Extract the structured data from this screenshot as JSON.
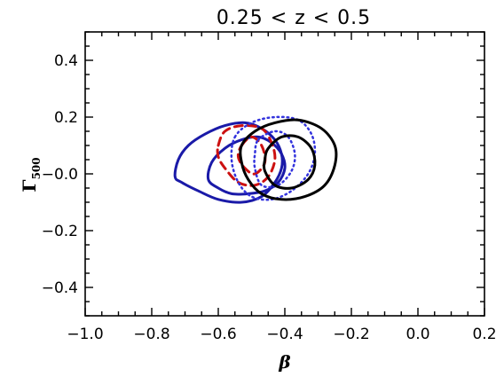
{
  "chart_data": {
    "type": "contour",
    "title": "0.25 < z < 0.5",
    "xlabel": "β",
    "ylabel": "Γ",
    "ylabel_sub": "500",
    "xlim": [
      -1.0,
      0.2
    ],
    "ylim": [
      -0.5,
      0.5
    ],
    "x_ticks": [
      -1.0,
      -0.8,
      -0.6,
      -0.4,
      -0.2,
      0.0,
      0.2
    ],
    "x_tick_labels": [
      "−1.0",
      "−0.8",
      "−0.6",
      "−0.4",
      "−0.2",
      "0.0",
      "0.2"
    ],
    "y_ticks": [
      -0.4,
      -0.2,
      0.0,
      0.2,
      0.4
    ],
    "y_tick_labels": [
      "−0.4",
      "−0.2",
      "−0.0",
      "0.2",
      "0.4"
    ],
    "grid": false,
    "series": [
      {
        "color": "#1a1aa8",
        "style": "solid",
        "contours": [
          [
            [
              -0.73,
              -0.01
            ],
            [
              -0.72,
              0.05
            ],
            [
              -0.69,
              0.1
            ],
            [
              -0.64,
              0.14
            ],
            [
              -0.58,
              0.17
            ],
            [
              -0.52,
              0.18
            ],
            [
              -0.47,
              0.16
            ],
            [
              -0.43,
              0.12
            ],
            [
              -0.41,
              0.07
            ],
            [
              -0.41,
              0.02
            ],
            [
              -0.43,
              -0.03
            ],
            [
              -0.47,
              -0.08
            ],
            [
              -0.53,
              -0.1
            ],
            [
              -0.6,
              -0.09
            ],
            [
              -0.66,
              -0.06
            ],
            [
              -0.71,
              -0.03
            ]
          ],
          [
            [
              -0.63,
              -0.02
            ],
            [
              -0.62,
              0.04
            ],
            [
              -0.58,
              0.09
            ],
            [
              -0.53,
              0.12
            ],
            [
              -0.48,
              0.13
            ],
            [
              -0.44,
              0.11
            ],
            [
              -0.41,
              0.07
            ],
            [
              -0.4,
              0.02
            ],
            [
              -0.42,
              -0.03
            ],
            [
              -0.46,
              -0.06
            ],
            [
              -0.51,
              -0.07
            ],
            [
              -0.56,
              -0.07
            ],
            [
              -0.6,
              -0.05
            ]
          ]
        ]
      },
      {
        "color": "#cc1111",
        "style": "dashed",
        "contours": [
          [
            [
              -0.6,
              0.1
            ],
            [
              -0.58,
              0.15
            ],
            [
              -0.53,
              0.17
            ],
            [
              -0.47,
              0.16
            ],
            [
              -0.44,
              0.11
            ],
            [
              -0.43,
              0.05
            ],
            [
              -0.45,
              -0.01
            ],
            [
              -0.49,
              -0.04
            ],
            [
              -0.54,
              -0.03
            ],
            [
              -0.58,
              0.02
            ],
            [
              -0.6,
              0.06
            ]
          ],
          [
            [
              -0.53,
              0.1
            ],
            [
              -0.5,
              0.13
            ],
            [
              -0.47,
              0.1
            ],
            [
              -0.46,
              0.04
            ],
            [
              -0.49,
              0.0
            ],
            [
              -0.52,
              0.02
            ],
            [
              -0.54,
              0.06
            ]
          ]
        ]
      },
      {
        "color": "#3333dd",
        "style": "dotted",
        "contours": [
          [
            [
              -0.55,
              0.13
            ],
            [
              -0.5,
              0.18
            ],
            [
              -0.43,
              0.2
            ],
            [
              -0.36,
              0.19
            ],
            [
              -0.32,
              0.14
            ],
            [
              -0.31,
              0.07
            ],
            [
              -0.33,
              0.0
            ],
            [
              -0.38,
              -0.06
            ],
            [
              -0.44,
              -0.09
            ],
            [
              -0.5,
              -0.08
            ],
            [
              -0.54,
              -0.03
            ],
            [
              -0.56,
              0.05
            ]
          ],
          [
            [
              -0.48,
              0.12
            ],
            [
              -0.43,
              0.15
            ],
            [
              -0.39,
              0.13
            ],
            [
              -0.37,
              0.07
            ],
            [
              -0.38,
              0.01
            ],
            [
              -0.42,
              -0.04
            ],
            [
              -0.47,
              -0.04
            ],
            [
              -0.49,
              0.02
            ],
            [
              -0.49,
              0.07
            ]
          ]
        ]
      },
      {
        "color": "#000000",
        "style": "solid",
        "contours": [
          [
            [
              -0.53,
              0.1
            ],
            [
              -0.49,
              0.15
            ],
            [
              -0.43,
              0.18
            ],
            [
              -0.36,
              0.19
            ],
            [
              -0.29,
              0.16
            ],
            [
              -0.25,
              0.1
            ],
            [
              -0.25,
              0.03
            ],
            [
              -0.28,
              -0.04
            ],
            [
              -0.34,
              -0.08
            ],
            [
              -0.41,
              -0.09
            ],
            [
              -0.47,
              -0.07
            ],
            [
              -0.51,
              -0.02
            ],
            [
              -0.53,
              0.04
            ]
          ],
          [
            [
              -0.45,
              0.09
            ],
            [
              -0.41,
              0.13
            ],
            [
              -0.36,
              0.13
            ],
            [
              -0.32,
              0.09
            ],
            [
              -0.31,
              0.03
            ],
            [
              -0.33,
              -0.02
            ],
            [
              -0.38,
              -0.05
            ],
            [
              -0.43,
              -0.04
            ],
            [
              -0.46,
              0.01
            ],
            [
              -0.46,
              0.05
            ]
          ]
        ]
      }
    ]
  }
}
